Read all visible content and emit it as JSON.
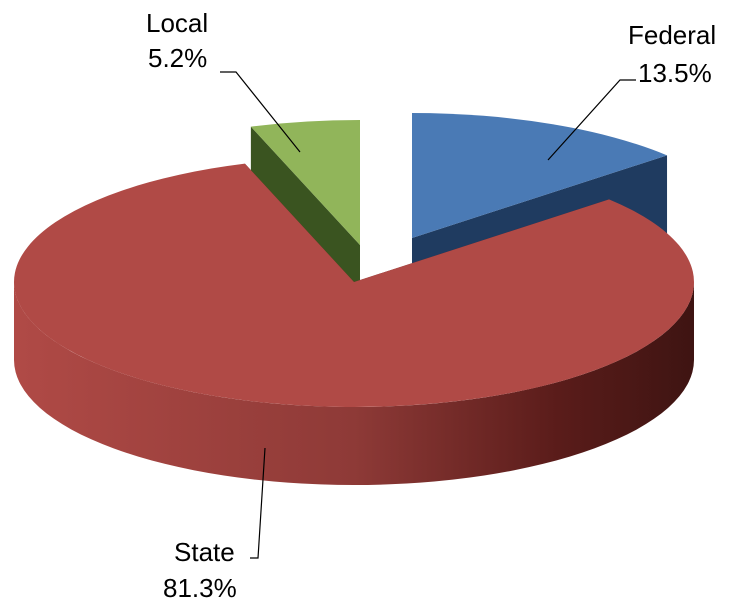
{
  "chart_data": {
    "type": "pie",
    "labels": [
      "Federal",
      "State",
      "Local"
    ],
    "values": [
      13.5,
      81.3,
      5.2
    ],
    "value_labels": [
      "13.5%",
      "81.3%",
      "5.2%"
    ],
    "colors": [
      "#4a7ab5",
      "#b04a46",
      "#91b55a"
    ],
    "side_colors": [
      "#1f3b60",
      "#5a1c1a",
      "#3a5420"
    ],
    "style": "3d-exploded"
  }
}
